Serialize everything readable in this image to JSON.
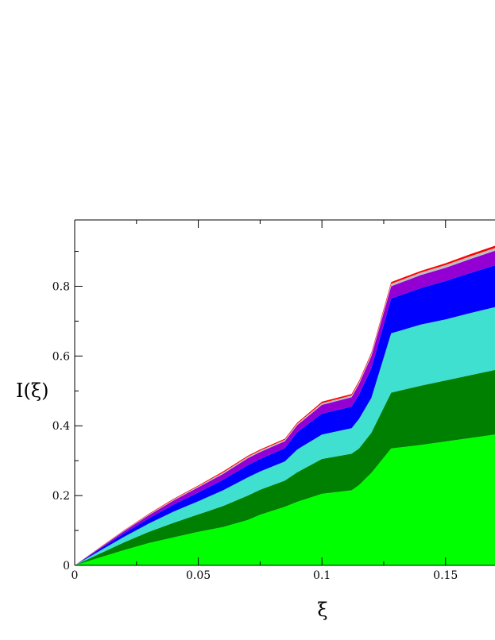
{
  "chart_data": {
    "type": "area",
    "stacked": true,
    "title": "",
    "xlabel": "ξ",
    "ylabel": "I(ξ)",
    "xlim": [
      0,
      0.17
    ],
    "ylim": [
      0,
      0.99
    ],
    "x_ticks": [
      {
        "value": 0,
        "label": "0"
      },
      {
        "value": 0.05,
        "label": "0.05"
      },
      {
        "value": 0.1,
        "label": "0.1"
      },
      {
        "value": 0.15,
        "label": "0.15"
      }
    ],
    "y_ticks": [
      {
        "value": 0,
        "label": "0"
      },
      {
        "value": 0.2,
        "label": "0.2"
      },
      {
        "value": 0.4,
        "label": "0.4"
      },
      {
        "value": 0.6,
        "label": "0.6"
      },
      {
        "value": 0.8,
        "label": "0.8"
      }
    ],
    "x_minor_step": 0.025,
    "y_minor_step": 0.1,
    "legend": "none",
    "grid": false,
    "x": [
      0,
      0.01,
      0.02,
      0.03,
      0.04,
      0.05,
      0.06,
      0.07,
      0.075,
      0.085,
      0.09,
      0.1,
      0.112,
      0.115,
      0.12,
      0.128,
      0.14,
      0.15,
      0.16,
      0.17
    ],
    "series": [
      {
        "color": "#00ff00",
        "values": [
          0,
          0.022,
          0.044,
          0.064,
          0.08,
          0.096,
          0.11,
          0.13,
          0.145,
          0.168,
          0.182,
          0.205,
          0.215,
          0.23,
          0.265,
          0.335,
          0.345,
          0.355,
          0.365,
          0.375
        ]
      },
      {
        "color": "#008000",
        "values": [
          0,
          0.011,
          0.022,
          0.032,
          0.042,
          0.05,
          0.06,
          0.07,
          0.072,
          0.075,
          0.085,
          0.1,
          0.105,
          0.105,
          0.115,
          0.16,
          0.17,
          0.175,
          0.18,
          0.185
        ]
      },
      {
        "color": "#40e0d0",
        "values": [
          0,
          0.008,
          0.016,
          0.024,
          0.032,
          0.038,
          0.045,
          0.052,
          0.052,
          0.055,
          0.065,
          0.07,
          0.073,
          0.085,
          0.1,
          0.17,
          0.175,
          0.175,
          0.178,
          0.18
        ]
      },
      {
        "color": "#0000ff",
        "values": [
          0,
          0.005,
          0.01,
          0.015,
          0.02,
          0.025,
          0.03,
          0.035,
          0.036,
          0.038,
          0.05,
          0.06,
          0.062,
          0.07,
          0.085,
          0.1,
          0.105,
          0.11,
          0.115,
          0.12
        ]
      },
      {
        "color": "#9400d3",
        "values": [
          0,
          0.003,
          0.006,
          0.009,
          0.012,
          0.015,
          0.017,
          0.02,
          0.02,
          0.02,
          0.02,
          0.025,
          0.027,
          0.03,
          0.035,
          0.035,
          0.037,
          0.038,
          0.04,
          0.042
        ]
      },
      {
        "color": "#bebebe",
        "values": [
          0,
          0.001,
          0.002,
          0.002,
          0.003,
          0.003,
          0.004,
          0.004,
          0.004,
          0.004,
          0.004,
          0.005,
          0.005,
          0.005,
          0.006,
          0.007,
          0.007,
          0.008,
          0.008,
          0.008
        ]
      },
      {
        "color": "#ff0000",
        "values": [
          0,
          0.001,
          0.001,
          0.002,
          0.002,
          0.002,
          0.003,
          0.003,
          0.003,
          0.003,
          0.003,
          0.004,
          0.004,
          0.004,
          0.004,
          0.005,
          0.005,
          0.005,
          0.006,
          0.006
        ]
      }
    ]
  }
}
